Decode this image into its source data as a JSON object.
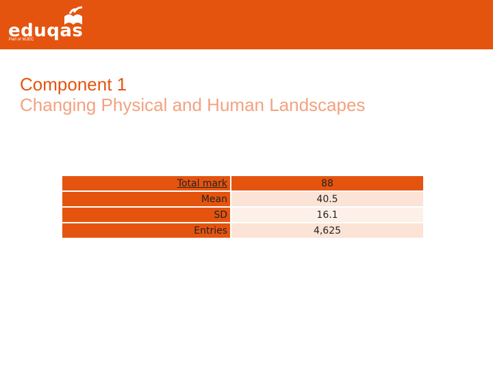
{
  "header": {
    "logo_text": "eduqas",
    "logo_subtext": "Part of WJEC"
  },
  "slide": {
    "title": "Component 1",
    "subtitle": "Changing Physical and Human Landscapes"
  },
  "stats": {
    "rows": [
      {
        "label": "Total mark",
        "value": "88"
      },
      {
        "label": "Mean",
        "value": "40.5"
      },
      {
        "label": "SD",
        "value": "16.1"
      },
      {
        "label": "Entries",
        "value": "4,625"
      }
    ]
  },
  "colors": {
    "brand_orange": "#e5540f",
    "subtitle_orange": "#f2a27f",
    "row_tint_dark": "#fbe3d6",
    "row_tint_light": "#fdf0e9"
  }
}
